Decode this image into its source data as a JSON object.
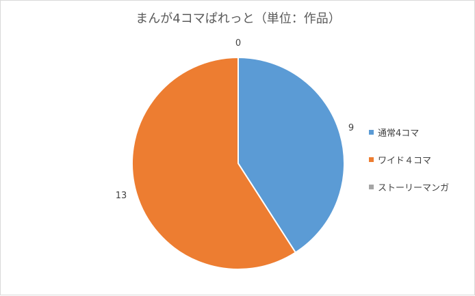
{
  "chart_data": {
    "type": "pie",
    "title": "まんが4コマぱれっと（単位：作品）",
    "categories": [
      "通常4コマ",
      "ワイド４コマ",
      "ストーリーマンガ"
    ],
    "values": [
      9,
      13,
      0
    ],
    "colors": [
      "#5b9bd5",
      "#ed7d31",
      "#a5a5a5"
    ],
    "data_labels": [
      "9",
      "13",
      "0"
    ],
    "legend_position": "right"
  }
}
